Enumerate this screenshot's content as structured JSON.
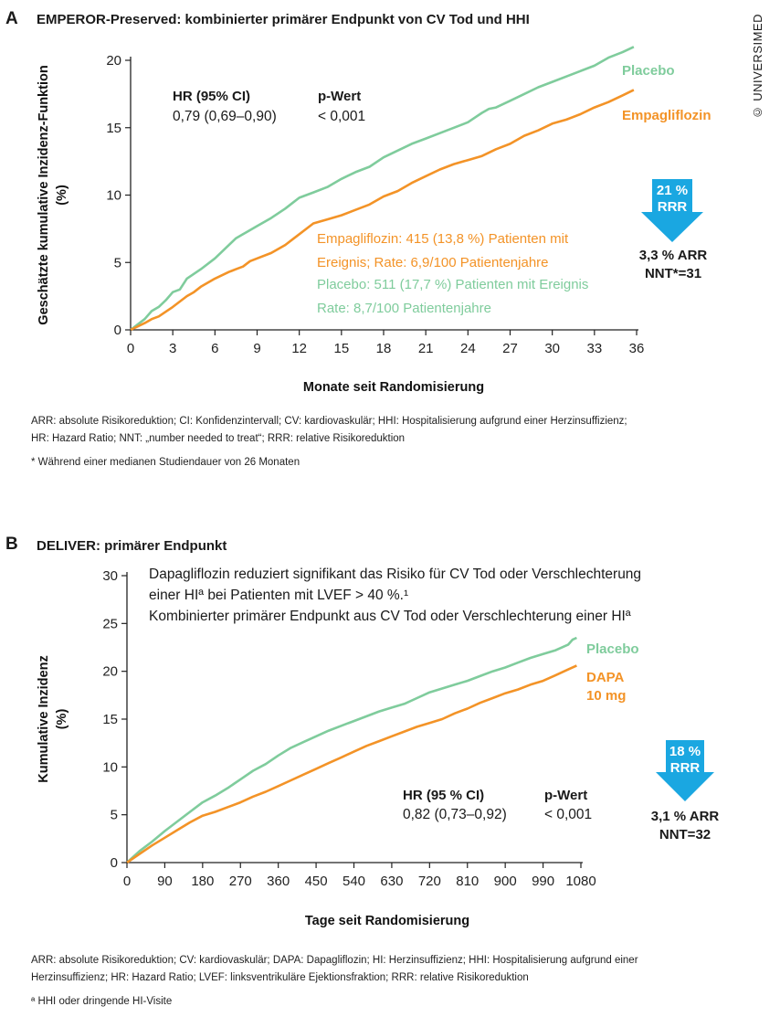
{
  "copyright": "© UNIVERSIMED",
  "panels": [
    {
      "letter": "A",
      "title": "EMPEROR-Preserved: kombinierter primärer Endpunkt von CV Tod und HHI",
      "annotations": {
        "hr_label": "HR (95% CI)",
        "hr_value": "0,79 (0,69–0,90)",
        "p_label": "p-Wert",
        "p_value": "< 0,001",
        "empa_lines": [
          "Empagliflozin: 415 (13,8 %) Patienten mit",
          "Ereignis; Rate: 6,9/100 Patientenjahre"
        ],
        "placebo_lines": [
          "Placebo: 511 (17,7 %) Patienten mit Ereignis",
          "Rate: 8,7/100 Patientenjahre"
        ],
        "arrow_lines": [
          "21 %",
          "RRR"
        ],
        "result_lines": [
          "3,3 % ARR",
          "NNT*=31"
        ]
      },
      "footnotes": [
        "ARR: absolute Risikoreduktion; CI: Konfidenzintervall; CV: kardiovaskulär; HHI: Hospitalisierung aufgrund einer Herzinsuffizienz;",
        "HR: Hazard Ratio; NNT: „number needed to treat“; RRR: relative Risikoreduktion",
        "* Während einer medianen Studiendauer von 26 Monaten"
      ]
    },
    {
      "letter": "B",
      "title": "DELIVER: primärer Endpunkt",
      "annotations": {
        "subtitle_lines": [
          "Dapagliflozin reduziert signifikant das Risiko für CV Tod oder Verschlechterung",
          "einer HIª bei Patienten mit LVEF > 40 %.¹",
          "Kombinierter primärer Endpunkt aus CV Tod oder Verschlechterung einer HIª"
        ],
        "hr_label": "HR (95 % CI)",
        "hr_value": "0,82 (0,73–0,92)",
        "p_label": "p-Wert",
        "p_value": "< 0,001",
        "arrow_lines": [
          "18 %",
          "RRR"
        ],
        "result_lines": [
          "3,1 % ARR",
          "NNT=32"
        ]
      },
      "footnotes": [
        "ARR: absolute Risikoreduktion; CV: kardiovaskulär; DAPA: Dapagliflozin; HI: Herzinsuffizienz; HHI: Hospitalisierung aufgrund einer",
        "Herzinsuffizienz; HR: Hazard Ratio; LVEF: linksventrikuläre Ejektionsfraktion; RRR: relative Risikoreduktion",
        "ª HHI oder dringende HI-Visite"
      ]
    }
  ],
  "chart_data": [
    {
      "type": "line",
      "xlabel": "Monate seit Randomisierung",
      "ylabel_lines": [
        "Geschätzte kumulative Inzidenz-Funktion",
        "(%)"
      ],
      "xlim": [
        0,
        36
      ],
      "ylim": [
        0,
        20
      ],
      "xticks": [
        0,
        3,
        6,
        9,
        12,
        15,
        18,
        21,
        24,
        27,
        30,
        33,
        36
      ],
      "yticks": [
        0,
        5,
        10,
        15,
        20
      ],
      "grid": false,
      "series": [
        {
          "name": "Placebo",
          "color": "#7fcc9c",
          "x": [
            0,
            1,
            1.5,
            2,
            2.5,
            3,
            3.5,
            4,
            5,
            6,
            7,
            7.5,
            8,
            9,
            10,
            11,
            11.5,
            12,
            13,
            14,
            15,
            16,
            17,
            18,
            19,
            20,
            21,
            22,
            23,
            24,
            25,
            25.5,
            26,
            27,
            28,
            29,
            30,
            31,
            32,
            33,
            34,
            35,
            35.8
          ],
          "values": [
            0,
            0.8,
            1.4,
            1.7,
            2.2,
            2.8,
            3.0,
            3.8,
            4.5,
            5.3,
            6.3,
            6.8,
            7.1,
            7.7,
            8.3,
            9.0,
            9.4,
            9.8,
            10.2,
            10.6,
            11.2,
            11.7,
            12.1,
            12.8,
            13.3,
            13.8,
            14.2,
            14.6,
            15.0,
            15.4,
            16.1,
            16.4,
            16.5,
            17.0,
            17.5,
            18.0,
            18.4,
            18.8,
            19.2,
            19.6,
            20.2,
            20.6,
            21.0
          ]
        },
        {
          "name": "Empagliflozin",
          "color": "#f39327",
          "x": [
            0,
            1,
            1.5,
            2,
            3,
            4,
            4.5,
            5,
            6,
            7,
            7.5,
            8,
            8.5,
            9,
            10,
            11,
            11.5,
            12,
            13,
            14,
            15,
            16,
            17,
            18,
            19,
            20,
            21,
            22,
            23,
            24,
            25,
            26,
            27,
            28,
            29,
            30,
            31,
            32,
            33,
            34,
            35,
            35.8
          ],
          "values": [
            0,
            0.5,
            0.8,
            1.0,
            1.7,
            2.5,
            2.8,
            3.2,
            3.8,
            4.3,
            4.5,
            4.7,
            5.1,
            5.3,
            5.7,
            6.3,
            6.7,
            7.1,
            7.9,
            8.2,
            8.5,
            8.9,
            9.3,
            9.9,
            10.3,
            10.9,
            11.4,
            11.9,
            12.3,
            12.6,
            12.9,
            13.4,
            13.8,
            14.4,
            14.8,
            15.3,
            15.6,
            16.0,
            16.5,
            16.9,
            17.4,
            17.8
          ]
        }
      ]
    },
    {
      "type": "line",
      "xlabel": "Tage seit Randomisierung",
      "ylabel_lines": [
        "Kumulative Inzidenz",
        "(%)"
      ],
      "xlim": [
        0,
        1080
      ],
      "ylim": [
        0,
        30
      ],
      "xticks": [
        0,
        90,
        180,
        270,
        360,
        450,
        540,
        630,
        720,
        810,
        900,
        990,
        1080
      ],
      "yticks": [
        0,
        5,
        10,
        15,
        20,
        25,
        30
      ],
      "grid": false,
      "series": [
        {
          "name": "Placebo",
          "color": "#7fcc9c",
          "x": [
            0,
            30,
            60,
            90,
            120,
            150,
            180,
            210,
            240,
            270,
            300,
            330,
            360,
            390,
            420,
            450,
            480,
            510,
            540,
            570,
            600,
            630,
            660,
            690,
            720,
            750,
            780,
            810,
            840,
            870,
            900,
            930,
            960,
            990,
            1020,
            1050,
            1060,
            1070
          ],
          "values": [
            0,
            1.2,
            2.2,
            3.3,
            4.3,
            5.3,
            6.3,
            7.0,
            7.8,
            8.7,
            9.6,
            10.3,
            11.2,
            12.0,
            12.6,
            13.2,
            13.8,
            14.3,
            14.8,
            15.3,
            15.8,
            16.2,
            16.6,
            17.2,
            17.8,
            18.2,
            18.6,
            19.0,
            19.5,
            20.0,
            20.4,
            20.9,
            21.4,
            21.8,
            22.2,
            22.8,
            23.3,
            23.5
          ]
        },
        {
          "name": "DAPA 10 mg",
          "color": "#f39327",
          "x": [
            0,
            30,
            60,
            90,
            120,
            150,
            180,
            210,
            240,
            270,
            300,
            330,
            360,
            390,
            420,
            450,
            480,
            510,
            540,
            570,
            600,
            630,
            660,
            690,
            720,
            750,
            780,
            810,
            840,
            870,
            900,
            930,
            960,
            990,
            1020,
            1050,
            1070
          ],
          "values": [
            0,
            0.9,
            1.8,
            2.6,
            3.4,
            4.2,
            4.9,
            5.3,
            5.8,
            6.3,
            6.9,
            7.4,
            8.0,
            8.6,
            9.2,
            9.8,
            10.4,
            11.0,
            11.6,
            12.2,
            12.7,
            13.2,
            13.7,
            14.2,
            14.6,
            15.0,
            15.6,
            16.1,
            16.7,
            17.2,
            17.7,
            18.1,
            18.6,
            19.0,
            19.6,
            20.2,
            20.6
          ]
        }
      ]
    }
  ]
}
